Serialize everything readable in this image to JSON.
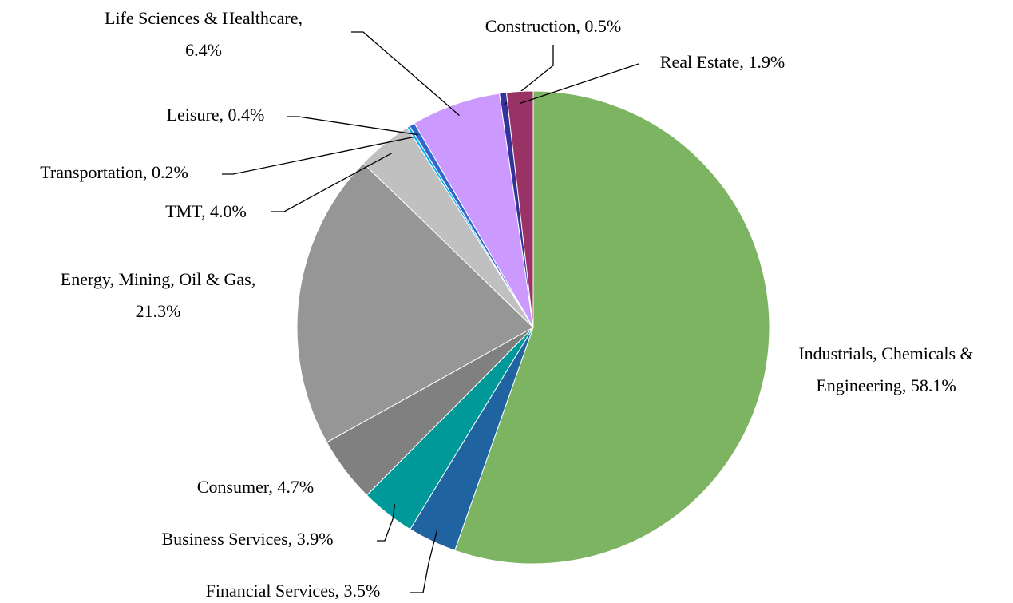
{
  "chart_data": {
    "type": "pie",
    "categories": [
      "Industrials, Chemicals & Engineering",
      "Financial Services",
      "Business Services",
      "Consumer",
      "Energy, Mining, Oil & Gas",
      "TMT",
      "Transportation",
      "Leisure",
      "Life Sciences & Healthcare",
      "Construction",
      "Real Estate"
    ],
    "values": [
      58.1,
      3.5,
      3.9,
      4.7,
      21.3,
      4.0,
      0.2,
      0.4,
      6.4,
      0.5,
      1.9
    ],
    "value_labels": [
      [
        "Industrials, Chemicals &",
        "Engineering, 58.1%"
      ],
      [
        "Financial Services, 3.5%"
      ],
      [
        "Business Services, 3.9%"
      ],
      [
        "Consumer, 4.7%"
      ],
      [
        "Energy, Mining, Oil & Gas,",
        "21.3%"
      ],
      [
        "TMT, 4.0%"
      ],
      [
        "Transportation, 0.2%"
      ],
      [
        "Leisure, 0.4%"
      ],
      [
        "Life Sciences & Healthcare,",
        "6.4%"
      ],
      [
        "Construction, 0.5%"
      ],
      [
        "Real Estate, 1.9%"
      ]
    ],
    "colors": [
      "#7db462",
      "#1f64a0",
      "#009999",
      "#808080",
      "#969696",
      "#c0c0c0",
      "#00b0f0",
      "#3366cc",
      "#cc99ff",
      "#333399",
      "#993366"
    ]
  }
}
